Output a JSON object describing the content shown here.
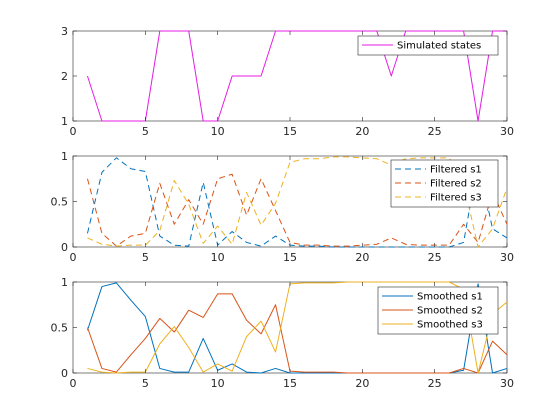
{
  "chart_data": [
    {
      "type": "line",
      "x": [
        1,
        2,
        3,
        4,
        5,
        6,
        7,
        8,
        9,
        10,
        11,
        12,
        13,
        14,
        15,
        16,
        17,
        18,
        19,
        20,
        21,
        22,
        23,
        24,
        25,
        26,
        27,
        28,
        29,
        30
      ],
      "xlim": [
        0,
        30
      ],
      "ylim": [
        1,
        3
      ],
      "xticks": [
        0,
        5,
        10,
        15,
        20,
        25,
        30
      ],
      "yticks": [
        1,
        2,
        3
      ],
      "legend_position": "top-right",
      "series": [
        {
          "name": "Simulated states",
          "color": "#e41ee4",
          "dash": "solid",
          "values": [
            2,
            1,
            1,
            1,
            1,
            3,
            3,
            3,
            1,
            1,
            2,
            2,
            2,
            3,
            3,
            3,
            3,
            3,
            3,
            3,
            3,
            2,
            3,
            3,
            3,
            3,
            3,
            1,
            3,
            3
          ]
        }
      ]
    },
    {
      "type": "line",
      "x": [
        1,
        2,
        3,
        4,
        5,
        6,
        7,
        8,
        9,
        10,
        11,
        12,
        13,
        14,
        15,
        16,
        17,
        18,
        19,
        20,
        21,
        22,
        23,
        24,
        25,
        26,
        27,
        28,
        29,
        30
      ],
      "xlim": [
        0,
        30
      ],
      "ylim": [
        0,
        1
      ],
      "xticks": [
        0,
        5,
        10,
        15,
        20,
        25,
        30
      ],
      "yticks": [
        0,
        0.5,
        1
      ],
      "legend_position": "top-right",
      "series": [
        {
          "name": "Filtered s1",
          "color": "#0072bd",
          "dash": "dashed",
          "values": [
            0.15,
            0.82,
            0.98,
            0.86,
            0.83,
            0.12,
            0.02,
            0.01,
            0.71,
            0.02,
            0.17,
            0.05,
            0.01,
            0.12,
            0.02,
            0.01,
            0.01,
            0.0,
            0.0,
            0.0,
            0.0,
            0.0,
            0.0,
            0.0,
            0.0,
            0.0,
            0.05,
            0.95,
            0.2,
            0.1
          ]
        },
        {
          "name": "Filtered s2",
          "color": "#d95319",
          "dash": "dashed",
          "values": [
            0.75,
            0.15,
            0.01,
            0.12,
            0.15,
            0.7,
            0.25,
            0.52,
            0.25,
            0.75,
            0.8,
            0.35,
            0.75,
            0.4,
            0.05,
            0.02,
            0.02,
            0.01,
            0.01,
            0.02,
            0.03,
            0.1,
            0.03,
            0.02,
            0.02,
            0.02,
            0.25,
            0.05,
            0.6,
            0.25
          ]
        },
        {
          "name": "Filtered s3",
          "color": "#edb120",
          "dash": "dashed",
          "values": [
            0.1,
            0.03,
            0.01,
            0.02,
            0.02,
            0.18,
            0.73,
            0.47,
            0.04,
            0.23,
            0.03,
            0.6,
            0.24,
            0.48,
            0.93,
            0.97,
            0.97,
            0.99,
            0.99,
            0.98,
            0.97,
            0.9,
            0.97,
            0.98,
            0.98,
            0.98,
            0.7,
            0.0,
            0.2,
            0.65
          ]
        }
      ]
    },
    {
      "type": "line",
      "x": [
        1,
        2,
        3,
        4,
        5,
        6,
        7,
        8,
        9,
        10,
        11,
        12,
        13,
        14,
        15,
        16,
        17,
        18,
        19,
        20,
        21,
        22,
        23,
        24,
        25,
        26,
        27,
        28,
        29,
        30
      ],
      "xlim": [
        0,
        30
      ],
      "ylim": [
        0,
        1
      ],
      "xticks": [
        0,
        5,
        10,
        15,
        20,
        25,
        30
      ],
      "yticks": [
        0,
        0.5,
        1
      ],
      "legend_position": "top-right",
      "series": [
        {
          "name": "Smoothed s1",
          "color": "#0072bd",
          "dash": "solid",
          "values": [
            0.47,
            0.95,
            0.99,
            0.8,
            0.62,
            0.05,
            0.01,
            0.01,
            0.38,
            0.03,
            0.1,
            0.01,
            0.0,
            0.05,
            0.0,
            0.0,
            0.0,
            0.0,
            0.0,
            0.0,
            0.0,
            0.0,
            0.0,
            0.0,
            0.0,
            0.0,
            0.03,
            0.98,
            0.0,
            0.05
          ]
        },
        {
          "name": "Smoothed s2",
          "color": "#d95319",
          "dash": "solid",
          "values": [
            0.5,
            0.05,
            0.01,
            0.2,
            0.38,
            0.6,
            0.45,
            0.69,
            0.61,
            0.87,
            0.87,
            0.58,
            0.43,
            0.75,
            0.02,
            0.01,
            0.01,
            0.01,
            0.0,
            0.0,
            0.0,
            0.0,
            0.0,
            0.0,
            0.0,
            0.0,
            0.05,
            0.0,
            0.35,
            0.2
          ]
        },
        {
          "name": "Smoothed s3",
          "color": "#edb120",
          "dash": "solid",
          "values": [
            0.05,
            0.01,
            0.0,
            0.01,
            0.01,
            0.32,
            0.51,
            0.28,
            0.01,
            0.1,
            0.02,
            0.4,
            0.57,
            0.23,
            0.98,
            0.99,
            0.99,
            0.99,
            1.0,
            1.0,
            1.0,
            1.0,
            1.0,
            1.0,
            1.0,
            1.0,
            0.92,
            0.0,
            0.65,
            0.78
          ]
        }
      ]
    }
  ]
}
